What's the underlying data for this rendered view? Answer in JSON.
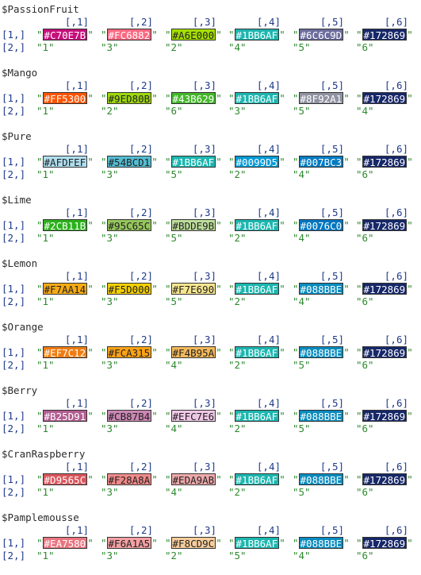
{
  "row_labels": [
    "[1,]",
    "[2,]"
  ],
  "col_headers": [
    "[,1]",
    "[,2]",
    "[,3]",
    "[,4]",
    "[,5]",
    "[,6]"
  ],
  "palettes": [
    {
      "name": "$PassionFruit",
      "colors": [
        "#C70E7B",
        "#FC6882",
        "#A6E000",
        "#1BB6AF",
        "#6C6C9D",
        "#172869"
      ],
      "order": [
        "\"1\"",
        "\"3\"",
        "\"2\"",
        "\"4\"",
        "\"5\"",
        "\"6\""
      ]
    },
    {
      "name": "$Mango",
      "colors": [
        "#FF5300",
        "#9ED80B",
        "#43B629",
        "#1BB6AF",
        "#8F92A1",
        "#172869"
      ],
      "order": [
        "\"1\"",
        "\"2\"",
        "\"6\"",
        "\"3\"",
        "\"5\"",
        "\"4\""
      ]
    },
    {
      "name": "$Pure",
      "colors": [
        "#AFDFEF",
        "#54BCD1",
        "#1BB6AF",
        "#0099D5",
        "#007BC3",
        "#172869"
      ],
      "order": [
        "\"1\"",
        "\"3\"",
        "\"5\"",
        "\"2\"",
        "\"4\"",
        "\"6\""
      ]
    },
    {
      "name": "$Lime",
      "colors": [
        "#2CB11B",
        "#95C65C",
        "#BDDE9B",
        "#1BB6AF",
        "#0076C0",
        "#172869"
      ],
      "order": [
        "\"1\"",
        "\"3\"",
        "\"5\"",
        "\"2\"",
        "\"4\"",
        "\"6\""
      ]
    },
    {
      "name": "$Lemon",
      "colors": [
        "#F7AA14",
        "#F5D000",
        "#F7E690",
        "#1BB6AF",
        "#088BBE",
        "#172869"
      ],
      "order": [
        "\"1\"",
        "\"3\"",
        "\"5\"",
        "\"2\"",
        "\"4\"",
        "\"6\""
      ]
    },
    {
      "name": "$Orange",
      "colors": [
        "#EF7C12",
        "#FCA315",
        "#F4B95A",
        "#1BB6AF",
        "#088BBE",
        "#172869"
      ],
      "order": [
        "\"1\"",
        "\"3\"",
        "\"4\"",
        "\"2\"",
        "\"5\"",
        "\"6\""
      ]
    },
    {
      "name": "$Berry",
      "colors": [
        "#B25D91",
        "#CB87B4",
        "#EFC7E6",
        "#1BB6AF",
        "#088BBE",
        "#172869"
      ],
      "order": [
        "\"1\"",
        "\"3\"",
        "\"4\"",
        "\"2\"",
        "\"5\"",
        "\"6\""
      ]
    },
    {
      "name": "$CranRaspberry",
      "colors": [
        "#D9565C",
        "#F28A8A",
        "#EDA9AB",
        "#1BB6AF",
        "#088BBE",
        "#172869"
      ],
      "order": [
        "\"1\"",
        "\"3\"",
        "\"4\"",
        "\"2\"",
        "\"5\"",
        "\"6\""
      ]
    },
    {
      "name": "$Pamplemousse",
      "colors": [
        "#EA7580",
        "#F6A1A5",
        "#F8CD9C",
        "#1BB6AF",
        "#088BBE",
        "#172869"
      ],
      "order": [
        "\"1\"",
        "\"3\"",
        "\"2\"",
        "\"5\"",
        "\"4\"",
        "\"6\""
      ]
    }
  ]
}
